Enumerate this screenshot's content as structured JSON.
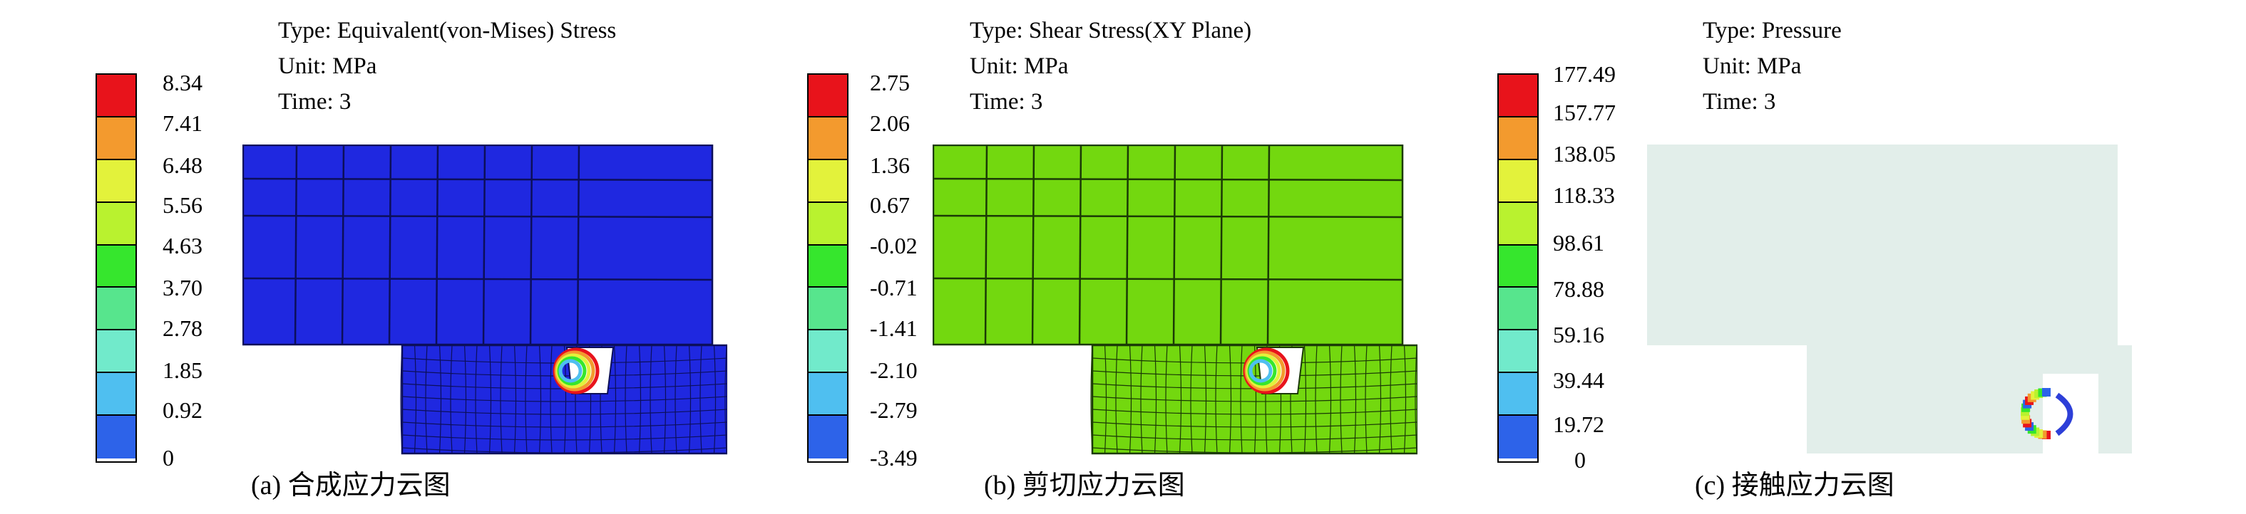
{
  "palette": [
    "#e8131b",
    "#f39a2e",
    "#e3f23b",
    "#b9f22f",
    "#36e62d",
    "#57e58d",
    "#71eacb",
    "#4fbff0",
    "#2d63e9"
  ],
  "panels": [
    {
      "id": "a",
      "type_line": "Type: Equivalent(von-Mises) Stress",
      "unit_line": "Unit: MPa",
      "time_line": "Time: 3",
      "legend_values": [
        "8.34",
        "7.41",
        "6.48",
        "5.56",
        "4.63",
        "3.70",
        "2.78",
        "1.85",
        "0.92",
        "0"
      ],
      "caption": "(a) 合成应力云图",
      "field_color": "#1f28e0",
      "mesh_color": "#0c0f5a"
    },
    {
      "id": "b",
      "type_line": "Type: Shear Stress(XY Plane)",
      "unit_line": "Unit: MPa",
      "time_line": "Time: 3",
      "legend_values": [
        "2.75",
        "2.06",
        "1.36",
        "0.67",
        "-0.02",
        "-0.71",
        "-1.41",
        "-2.10",
        "-2.79",
        "-3.49"
      ],
      "caption": "(b) 剪切应力云图",
      "field_color": "#73d80f",
      "mesh_color": "#1b3a06"
    },
    {
      "id": "c",
      "type_line": "Type: Pressure",
      "unit_line": "Unit: MPa",
      "time_line": "Time: 3",
      "legend_values": [
        "177.49",
        "157.77",
        "138.05",
        "118.33",
        "98.61",
        "78.88",
        "59.16",
        "39.44",
        "19.72",
        "0"
      ],
      "caption": "(c) 接触应力云图",
      "field_color": "#e2eeea",
      "mesh_color": "#e2eeea"
    }
  ]
}
